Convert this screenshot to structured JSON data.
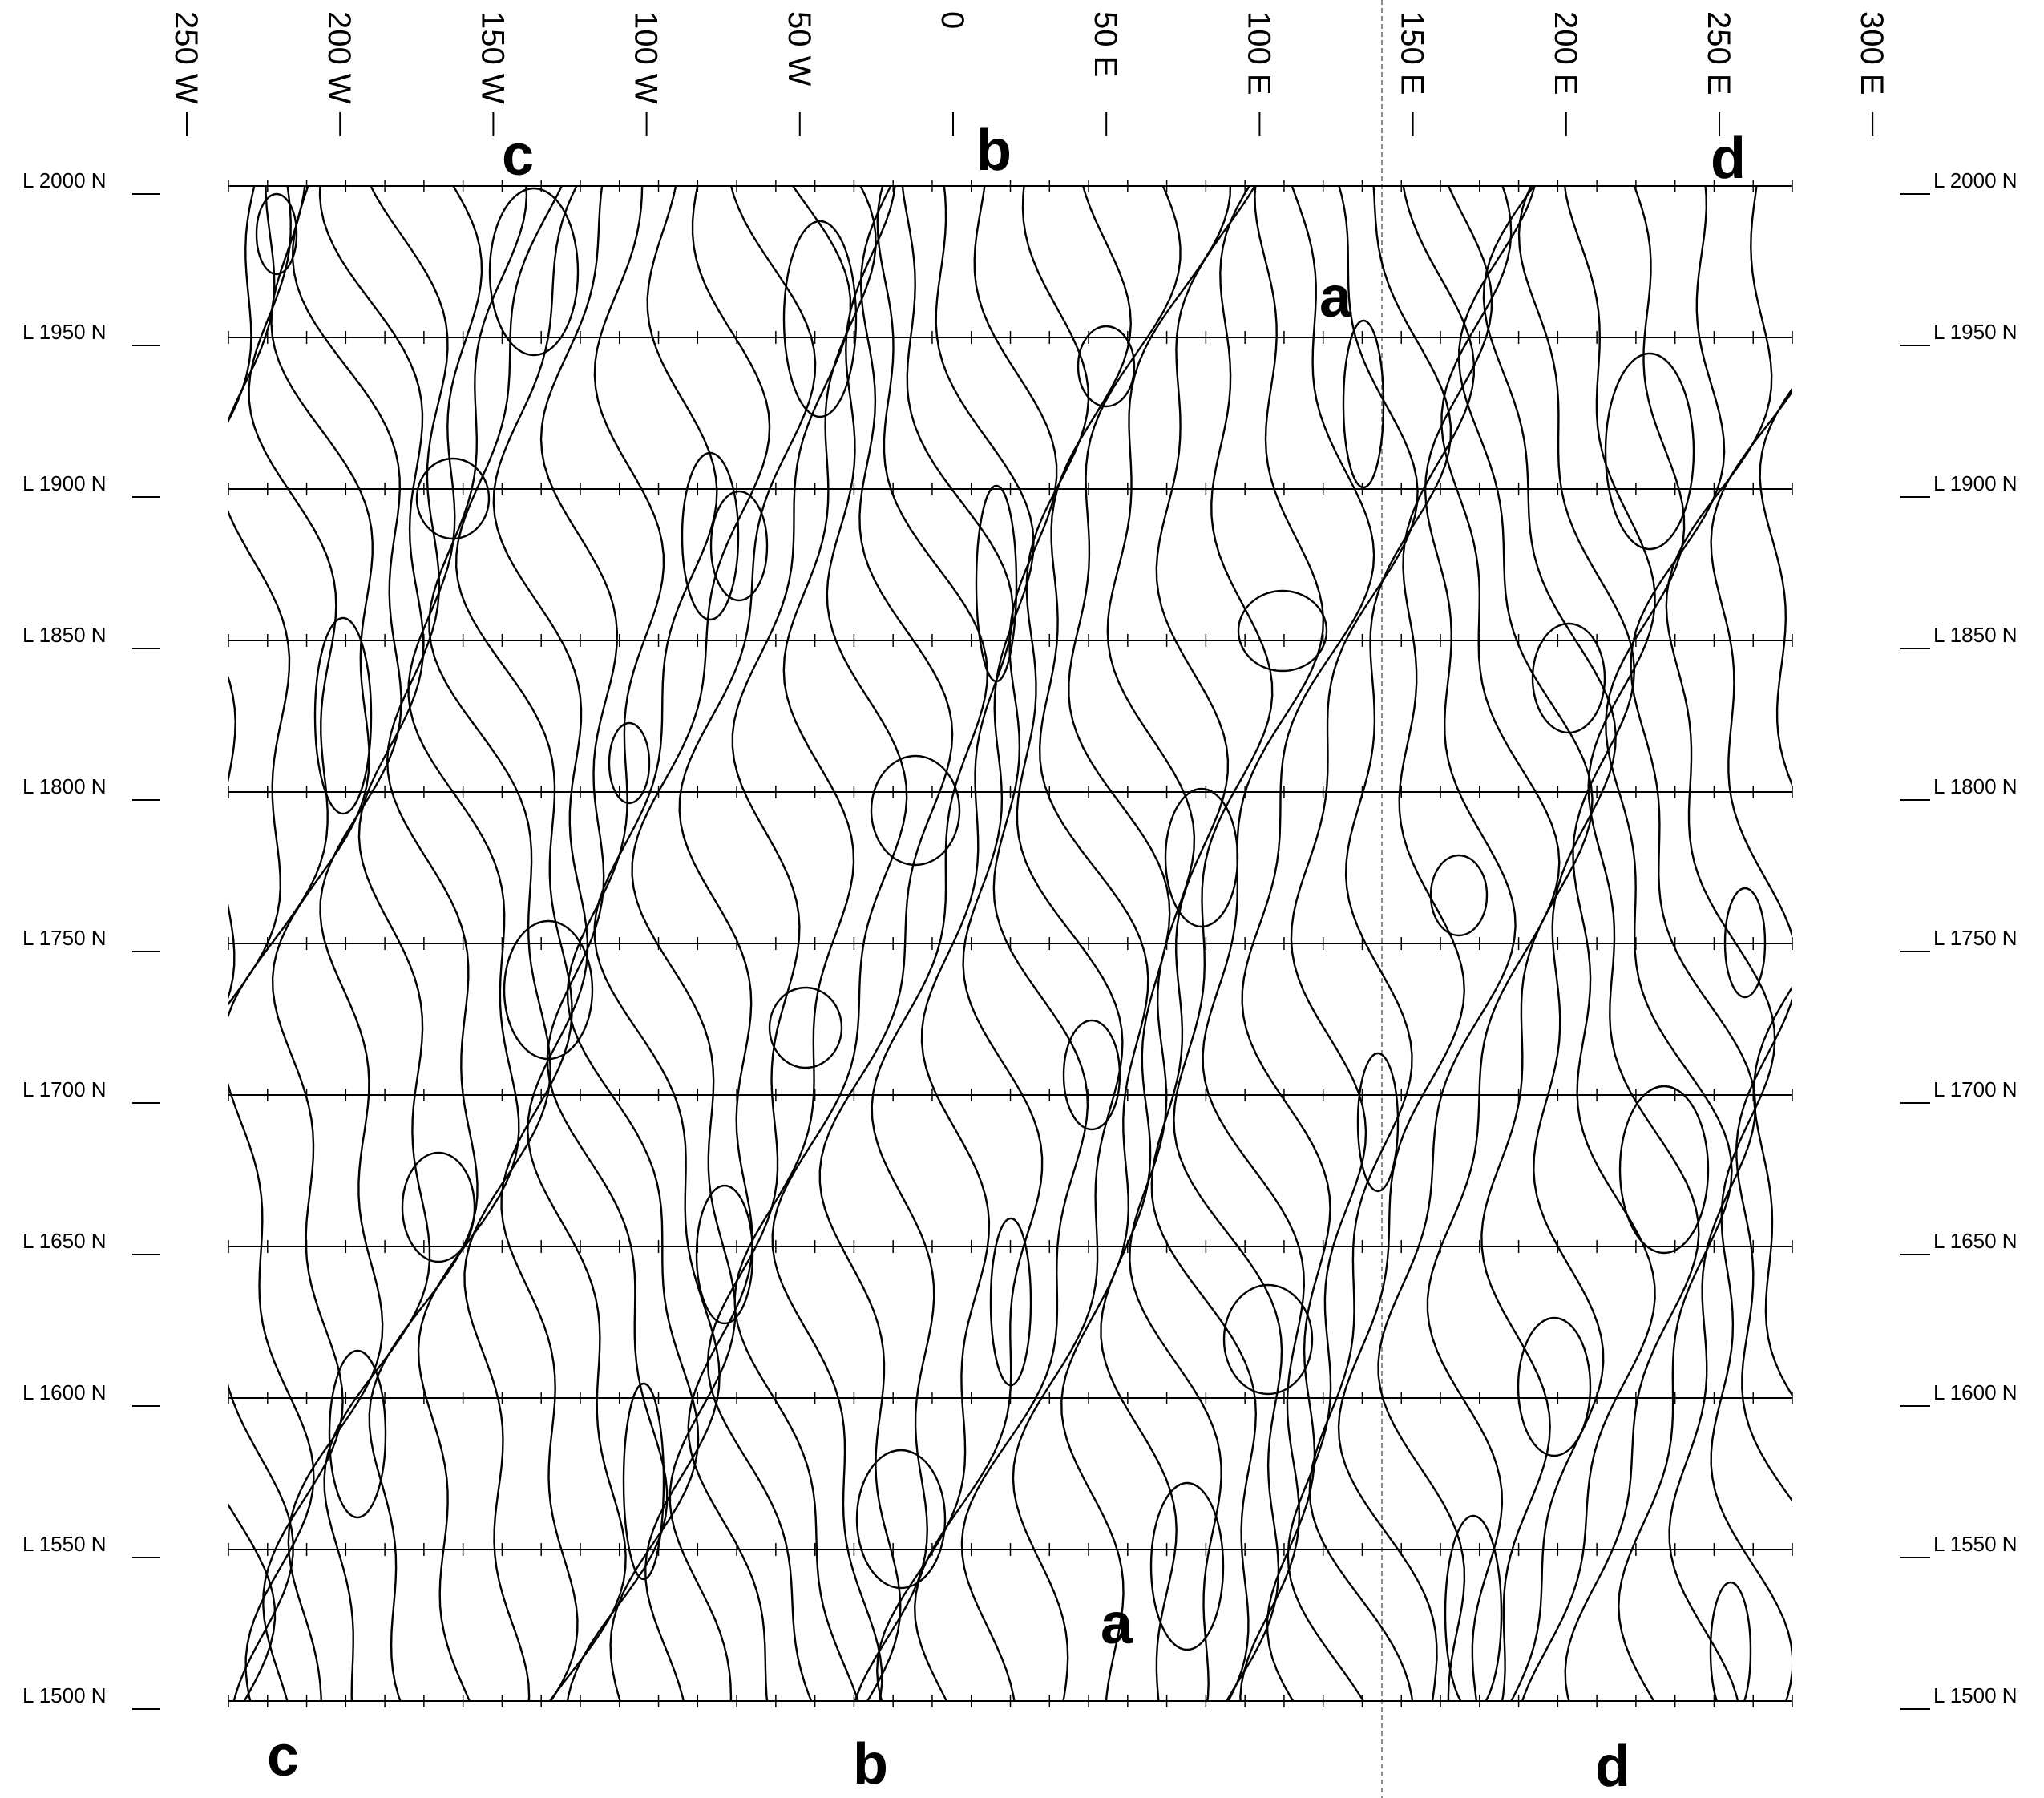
{
  "top_axis": [
    "250 W",
    "200 W",
    "150 W",
    "100 W",
    "50 W",
    "0",
    "50 E",
    "100 E",
    "150 E",
    "200 E",
    "250 E",
    "300 E"
  ],
  "left_axis": [
    "L 2000 N",
    "L 1950 N",
    "L 1900 N",
    "L 1850 N",
    "L 1800 N",
    "L 1750 N",
    "L 1700 N",
    "L 1650 N",
    "L 1600 N",
    "L 1550 N",
    "L 1500 N"
  ],
  "right_axis": [
    "L 2000 N",
    "L 1950 N",
    "L 1900 N",
    "L 1850 N",
    "L 1800 N",
    "L 1750 N",
    "L 1700 N",
    "L 1650 N",
    "L 1600 N",
    "L 1550 N",
    "L 1500 N"
  ],
  "markers": [
    "c",
    "b",
    "d",
    "a",
    "c",
    "b",
    "d",
    "a"
  ]
}
